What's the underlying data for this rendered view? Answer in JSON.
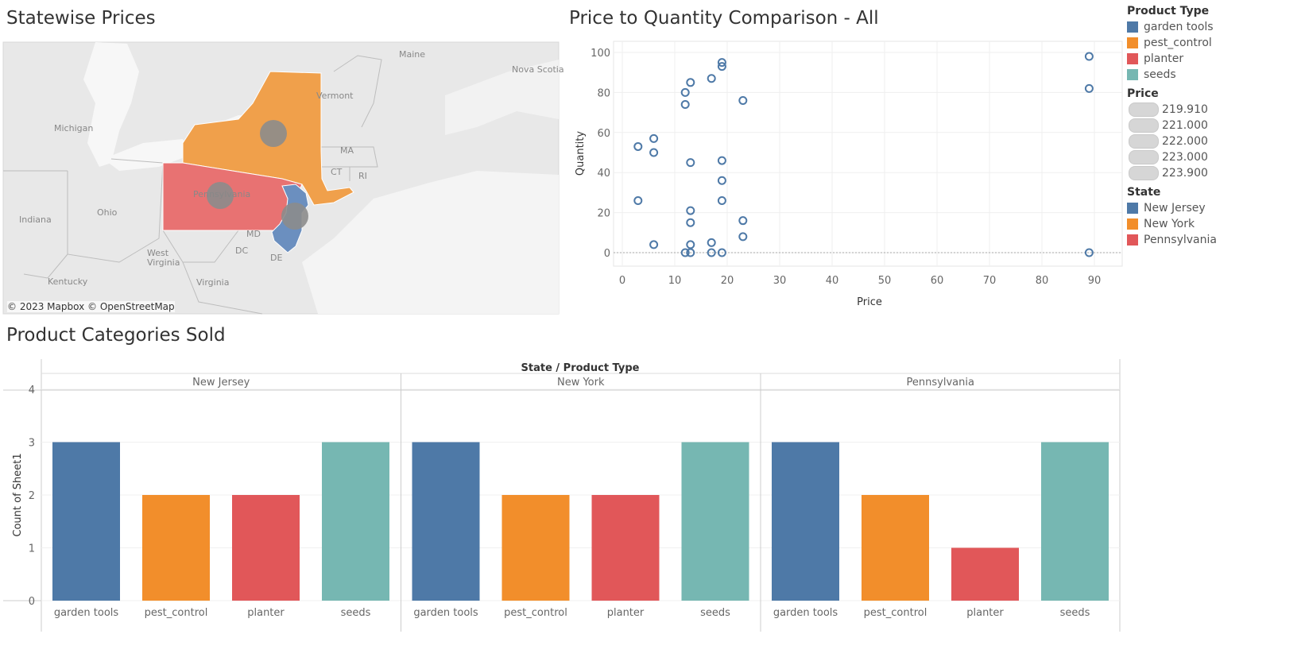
{
  "titles": {
    "map": "Statewise Prices",
    "scatter": "Price to Quantity Comparison - All",
    "bars": "Product Categories Sold"
  },
  "map": {
    "attribution": "© 2023 Mapbox © OpenStreetMap",
    "labels": [
      "Michigan",
      "Ohio",
      "Indiana",
      "Kentucky",
      "West Virginia",
      "Virginia",
      "Maine",
      "Nova Scotia",
      "Vermont",
      "MA",
      "CT",
      "RI",
      "DC",
      "DE",
      "MD",
      "Pennsylvania"
    ],
    "state_colors": {
      "New Jersey": "#6b8fbf",
      "New York": "#f0a04b",
      "Pennsylvania": "#e87272"
    }
  },
  "legend": {
    "product_type_title": "Product Type",
    "product_types": [
      {
        "label": "garden tools",
        "color": "#4e79a7"
      },
      {
        "label": "pest_control",
        "color": "#f28e2b"
      },
      {
        "label": "planter",
        "color": "#e15759"
      },
      {
        "label": "seeds",
        "color": "#76b7b2"
      }
    ],
    "price_title": "Price",
    "prices": [
      "219.910",
      "221.000",
      "222.000",
      "223.000",
      "223.900"
    ],
    "state_title": "State",
    "states": [
      {
        "label": "New Jersey",
        "color": "#4e79a7"
      },
      {
        "label": "New York",
        "color": "#f28e2b"
      },
      {
        "label": "Pennsylvania",
        "color": "#e15759"
      }
    ]
  },
  "chart_data": [
    {
      "type": "scatter",
      "title": "Price to Quantity Comparison - All",
      "xlabel": "Price",
      "ylabel": "Quantity",
      "xlim": [
        0,
        95
      ],
      "ylim": [
        0,
        100
      ],
      "xticks": [
        0,
        10,
        20,
        30,
        40,
        50,
        60,
        70,
        80,
        90
      ],
      "yticks": [
        0,
        20,
        40,
        60,
        80,
        100
      ],
      "grid": true,
      "point_color": "#4e79a7",
      "points": [
        [
          3,
          53
        ],
        [
          3,
          26
        ],
        [
          6,
          57
        ],
        [
          6,
          50
        ],
        [
          6,
          4
        ],
        [
          12,
          80
        ],
        [
          12,
          74
        ],
        [
          12,
          0
        ],
        [
          13,
          85
        ],
        [
          13,
          45
        ],
        [
          13,
          21
        ],
        [
          13,
          15
        ],
        [
          13,
          4
        ],
        [
          13,
          0
        ],
        [
          17,
          87
        ],
        [
          17,
          5
        ],
        [
          17,
          0
        ],
        [
          19,
          95
        ],
        [
          19,
          93
        ],
        [
          19,
          46
        ],
        [
          19,
          36
        ],
        [
          19,
          26
        ],
        [
          19,
          0
        ],
        [
          23,
          76
        ],
        [
          23,
          16
        ],
        [
          23,
          8
        ],
        [
          89,
          98
        ],
        [
          89,
          82
        ],
        [
          89,
          0
        ]
      ]
    },
    {
      "type": "bar",
      "title": "Product Categories Sold",
      "header": "State / Product Type",
      "ylabel": "Count of Sheet1",
      "ylim": [
        0,
        4
      ],
      "yticks": [
        0,
        1,
        2,
        3,
        4
      ],
      "categories": [
        "garden tools",
        "pest_control",
        "planter",
        "seeds"
      ],
      "colors": [
        "#4e79a7",
        "#f28e2b",
        "#e15759",
        "#76b7b2"
      ],
      "panels": [
        {
          "name": "New Jersey",
          "values": [
            3,
            2,
            2,
            3
          ]
        },
        {
          "name": "New York",
          "values": [
            3,
            2,
            2,
            3
          ]
        },
        {
          "name": "Pennsylvania",
          "values": [
            3,
            2,
            1,
            3
          ]
        }
      ]
    }
  ]
}
